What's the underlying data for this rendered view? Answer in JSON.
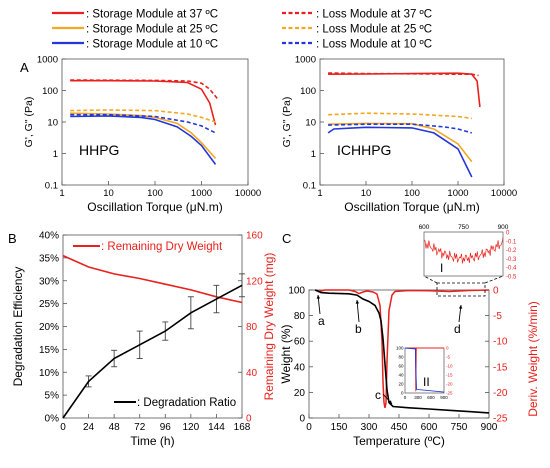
{
  "legend": {
    "items": [
      {
        "label": ": Storage Module at 37 ºC",
        "color": "#e8211d",
        "dash": false
      },
      {
        "label": ": Loss Module at 37 ºC",
        "color": "#e8211d",
        "dash": true
      },
      {
        "label": ": Storage Module at 25 ºC",
        "color": "#f5a623",
        "dash": false
      },
      {
        "label": ": Loss Module at 25 ºC",
        "color": "#f5a623",
        "dash": true
      },
      {
        "label": ": Storage Module at 10 ºC",
        "color": "#2437d8",
        "dash": false
      },
      {
        "label": ": Loss Module at 10 ºC",
        "color": "#2437d8",
        "dash": true
      }
    ]
  },
  "panels": {
    "A": "A",
    "B": "B",
    "C": "C"
  },
  "colors": {
    "red": "#e8211d",
    "orange": "#f5a623",
    "blue": "#2437d8",
    "black": "#000000"
  },
  "chart_data": [
    {
      "id": "A-left",
      "type": "line",
      "annotation": "HHPG",
      "xlabel": "Oscillation Torque (μN.m)",
      "ylabel": "G', G\" (Pa)",
      "xscale": "log",
      "yscale": "log",
      "xlim": [
        1,
        10000
      ],
      "ylim": [
        0.1,
        1000
      ],
      "xticks": [
        1,
        10,
        100,
        1000,
        10000
      ],
      "xtick_labels": [
        "1",
        "10",
        "100",
        "1000",
        "10000"
      ],
      "yticks": [
        0.1,
        1,
        10,
        100,
        1000
      ],
      "ytick_labels": [
        "0.1",
        "1",
        "10",
        "100",
        "1000"
      ],
      "series": [
        {
          "name": "Storage Module at 37 ºC",
          "color": "#e8211d",
          "dash": false,
          "x": [
            1.5,
            10,
            100,
            500,
            1000,
            1500,
            2000
          ],
          "y": [
            205,
            205,
            200,
            180,
            110,
            40,
            8
          ]
        },
        {
          "name": "Loss Module at 37 ºC",
          "color": "#e8211d",
          "dash": true,
          "x": [
            1.5,
            10,
            100,
            500,
            1000,
            1500,
            2200
          ],
          "y": [
            215,
            212,
            210,
            200,
            170,
            110,
            55
          ]
        },
        {
          "name": "Storage Module at 25 ºC",
          "color": "#f5a623",
          "dash": false,
          "x": [
            1.5,
            10,
            50,
            100,
            300,
            600,
            1000,
            2000
          ],
          "y": [
            19,
            18,
            16,
            14,
            9,
            4.5,
            2.2,
            0.7
          ]
        },
        {
          "name": "Loss Module at 25 ºC",
          "color": "#f5a623",
          "dash": true,
          "x": [
            1.5,
            10,
            100,
            500,
            1000,
            2000
          ],
          "y": [
            23,
            24,
            23,
            18,
            14,
            10
          ]
        },
        {
          "name": "Storage Module at 10 ºC",
          "color": "#2437d8",
          "dash": false,
          "x": [
            1.5,
            10,
            50,
            100,
            300,
            600,
            1000,
            2000
          ],
          "y": [
            15,
            15.5,
            14,
            12,
            7,
            3.5,
            1.8,
            0.45
          ]
        },
        {
          "name": "Loss Module at 10 ºC",
          "color": "#2437d8",
          "dash": true,
          "x": [
            1.5,
            10,
            100,
            500,
            1000,
            2000
          ],
          "y": [
            17,
            17,
            15,
            10,
            7.5,
            4.5
          ]
        }
      ]
    },
    {
      "id": "A-right",
      "type": "line",
      "annotation": "ICHHPG",
      "xlabel": "Oscillation Torque (μN.m)",
      "ylabel": "G', G\" (Pa)",
      "xscale": "log",
      "yscale": "log",
      "xlim": [
        1,
        10000
      ],
      "ylim": [
        0.1,
        1000
      ],
      "xticks": [
        1,
        10,
        100,
        1000,
        10000
      ],
      "xtick_labels": [
        "1",
        "10",
        "100",
        "1000",
        "10000"
      ],
      "yticks": [
        0.1,
        1,
        10,
        100,
        1000
      ],
      "ytick_labels": [
        "0.1",
        "1",
        "10",
        "100",
        "1000"
      ],
      "series": [
        {
          "name": "Storage Module at 37 ºC",
          "color": "#e8211d",
          "dash": false,
          "x": [
            1.5,
            10,
            100,
            1000,
            2000,
            2600,
            3000
          ],
          "y": [
            330,
            335,
            345,
            355,
            330,
            200,
            30
          ]
        },
        {
          "name": "Loss Module at 37 ºC",
          "color": "#e8211d",
          "dash": true,
          "x": [
            1.5,
            10,
            100,
            1000,
            2000,
            2800
          ],
          "y": [
            360,
            345,
            340,
            330,
            330,
            300
          ]
        },
        {
          "name": "Storage Module at 25 ºC",
          "color": "#f5a623",
          "dash": false,
          "x": [
            1.5,
            10,
            100,
            300,
            1000,
            2000
          ],
          "y": [
            8.5,
            9,
            8.8,
            6,
            2,
            0.55
          ]
        },
        {
          "name": "Loss Module at 25 ºC",
          "color": "#f5a623",
          "dash": true,
          "x": [
            1.5,
            10,
            100,
            1000,
            2000
          ],
          "y": [
            17,
            19,
            18,
            15,
            13
          ]
        },
        {
          "name": "Storage Module at 10 ºC",
          "color": "#2437d8",
          "dash": false,
          "x": [
            1.5,
            2,
            10,
            100,
            300,
            1000,
            2000
          ],
          "y": [
            4.5,
            6,
            6.8,
            6.5,
            4.5,
            1.4,
            0.18
          ]
        },
        {
          "name": "Loss Module at 10 ºC",
          "color": "#2437d8",
          "dash": true,
          "x": [
            1.5,
            10,
            100,
            500,
            1000,
            2000
          ],
          "y": [
            8,
            8.5,
            8.5,
            7,
            6,
            4.5
          ]
        }
      ]
    },
    {
      "id": "B",
      "type": "line",
      "xlabel": "Time (h)",
      "ylabel": "Degradation Efficiency",
      "y2label": "Remaining Dry Weight (mg)",
      "xlim": [
        0,
        168
      ],
      "ylim": [
        0,
        40
      ],
      "y2lim": [
        0,
        160
      ],
      "xticks": [
        0,
        24,
        48,
        72,
        96,
        120,
        144,
        168
      ],
      "xtick_labels": [
        "0",
        "24",
        "48",
        "72",
        "96",
        "120",
        "144",
        "168"
      ],
      "yticks": [
        0,
        5,
        10,
        15,
        20,
        25,
        30,
        35,
        40
      ],
      "ytick_labels": [
        "0%",
        "5%",
        "10%",
        "15%",
        "20%",
        "25%",
        "30%",
        "35%",
        "40%"
      ],
      "y2ticks": [
        0,
        40,
        80,
        120,
        160
      ],
      "y2tick_labels": [
        "0",
        "40",
        "80",
        "120",
        "160"
      ],
      "legend": [
        {
          "label": ": Remaining Dry Weight",
          "color": "#e8211d"
        },
        {
          "label": ": Degradation Ratio",
          "color": "#000000"
        }
      ],
      "series": [
        {
          "name": "Remaining Dry Weight",
          "axis": "right",
          "color": "#e8211d",
          "x": [
            0,
            24,
            48,
            72,
            96,
            120,
            144,
            168
          ],
          "y": [
            142,
            132,
            126,
            122,
            117,
            112,
            106,
            101
          ]
        },
        {
          "name": "Degradation Ratio",
          "axis": "left",
          "color": "#000000",
          "x": [
            0,
            24,
            48,
            72,
            96,
            120,
            144,
            168
          ],
          "y": [
            0,
            8,
            13,
            16,
            19,
            23,
            26,
            29
          ],
          "err": [
            0,
            1.2,
            1.8,
            3.0,
            2.0,
            3.5,
            3.0,
            2.5
          ]
        }
      ]
    },
    {
      "id": "C",
      "type": "line",
      "xlabel": "Temperature (ºC)",
      "ylabel": "Weight (%)",
      "y2label": "Deriv. Weight (%/min)",
      "xlim": [
        0,
        900
      ],
      "ylim": [
        0,
        100
      ],
      "y2lim": [
        -25,
        0
      ],
      "xticks": [
        0,
        150,
        300,
        450,
        600,
        750,
        900
      ],
      "xtick_labels": [
        "0",
        "150",
        "300",
        "450",
        "600",
        "750",
        "900"
      ],
      "yticks": [
        0,
        20,
        40,
        60,
        80,
        100
      ],
      "ytick_labels": [
        "0",
        "20",
        "40",
        "60",
        "80",
        "100"
      ],
      "y2ticks": [
        -25,
        -20,
        -15,
        -10,
        -5,
        0
      ],
      "y2tick_labels": [
        "-25",
        "-20",
        "-15",
        "-10",
        "-5",
        "0"
      ],
      "annotations": [
        "a",
        "b",
        "c",
        "d"
      ],
      "inset_labels": [
        "I",
        "II"
      ],
      "series": [
        {
          "name": "Weight",
          "axis": "left",
          "color": "#000000",
          "x": [
            30,
            50,
            60,
            100,
            200,
            240,
            270,
            300,
            330,
            350,
            360,
            370,
            380,
            390,
            400,
            420,
            500,
            600,
            700,
            800,
            900
          ],
          "y": [
            100,
            99,
            98,
            97.5,
            97,
            96,
            93,
            91,
            88,
            82,
            76,
            62,
            42,
            22,
            12,
            9,
            8,
            7,
            6,
            5,
            4
          ]
        },
        {
          "name": "Deriv. Weight",
          "axis": "right",
          "color": "#e8211d",
          "x": [
            30,
            50,
            60,
            80,
            200,
            230,
            250,
            270,
            290,
            320,
            340,
            355,
            365,
            370,
            375,
            380,
            385,
            390,
            400,
            415,
            430,
            500,
            600,
            700,
            800,
            900
          ],
          "y": [
            0,
            -0.4,
            -0.2,
            0,
            0,
            -0.3,
            -0.7,
            -0.4,
            -0.2,
            -0.4,
            -0.8,
            -3,
            -10,
            -18,
            -22,
            -23,
            -22,
            -14,
            -4,
            -1,
            -0.3,
            -0.1,
            -0.15,
            -0.3,
            -0.1,
            0
          ]
        }
      ],
      "inset_I": {
        "xticks": [
          600,
          750,
          900
        ],
        "xtick_labels": [
          "600",
          "750",
          "900"
        ],
        "yticks": [
          0,
          -0.1,
          -0.2,
          -0.3,
          -0.4,
          -0.5
        ],
        "ytick_labels": [
          "0",
          "-0.1",
          "-0.2",
          "-0.3",
          "-0.4",
          "-0.5"
        ],
        "xlim": [
          600,
          900
        ],
        "ylim": [
          -0.5,
          0
        ]
      },
      "inset_II": {
        "xticks": [
          0,
          300,
          600,
          900
        ],
        "xtick_labels": [
          "0",
          "300",
          "600",
          "900"
        ],
        "yticks": [
          0,
          20,
          40,
          60,
          80,
          100
        ],
        "ytick_labels": [
          "0",
          "20",
          "40",
          "60",
          "80",
          "100"
        ],
        "y2ticks": [
          0,
          -5,
          -10,
          -15,
          -20,
          -25
        ],
        "y2tick_labels": [
          "0",
          "-5",
          "-10",
          "-15",
          "-20",
          "-25"
        ]
      }
    }
  ]
}
